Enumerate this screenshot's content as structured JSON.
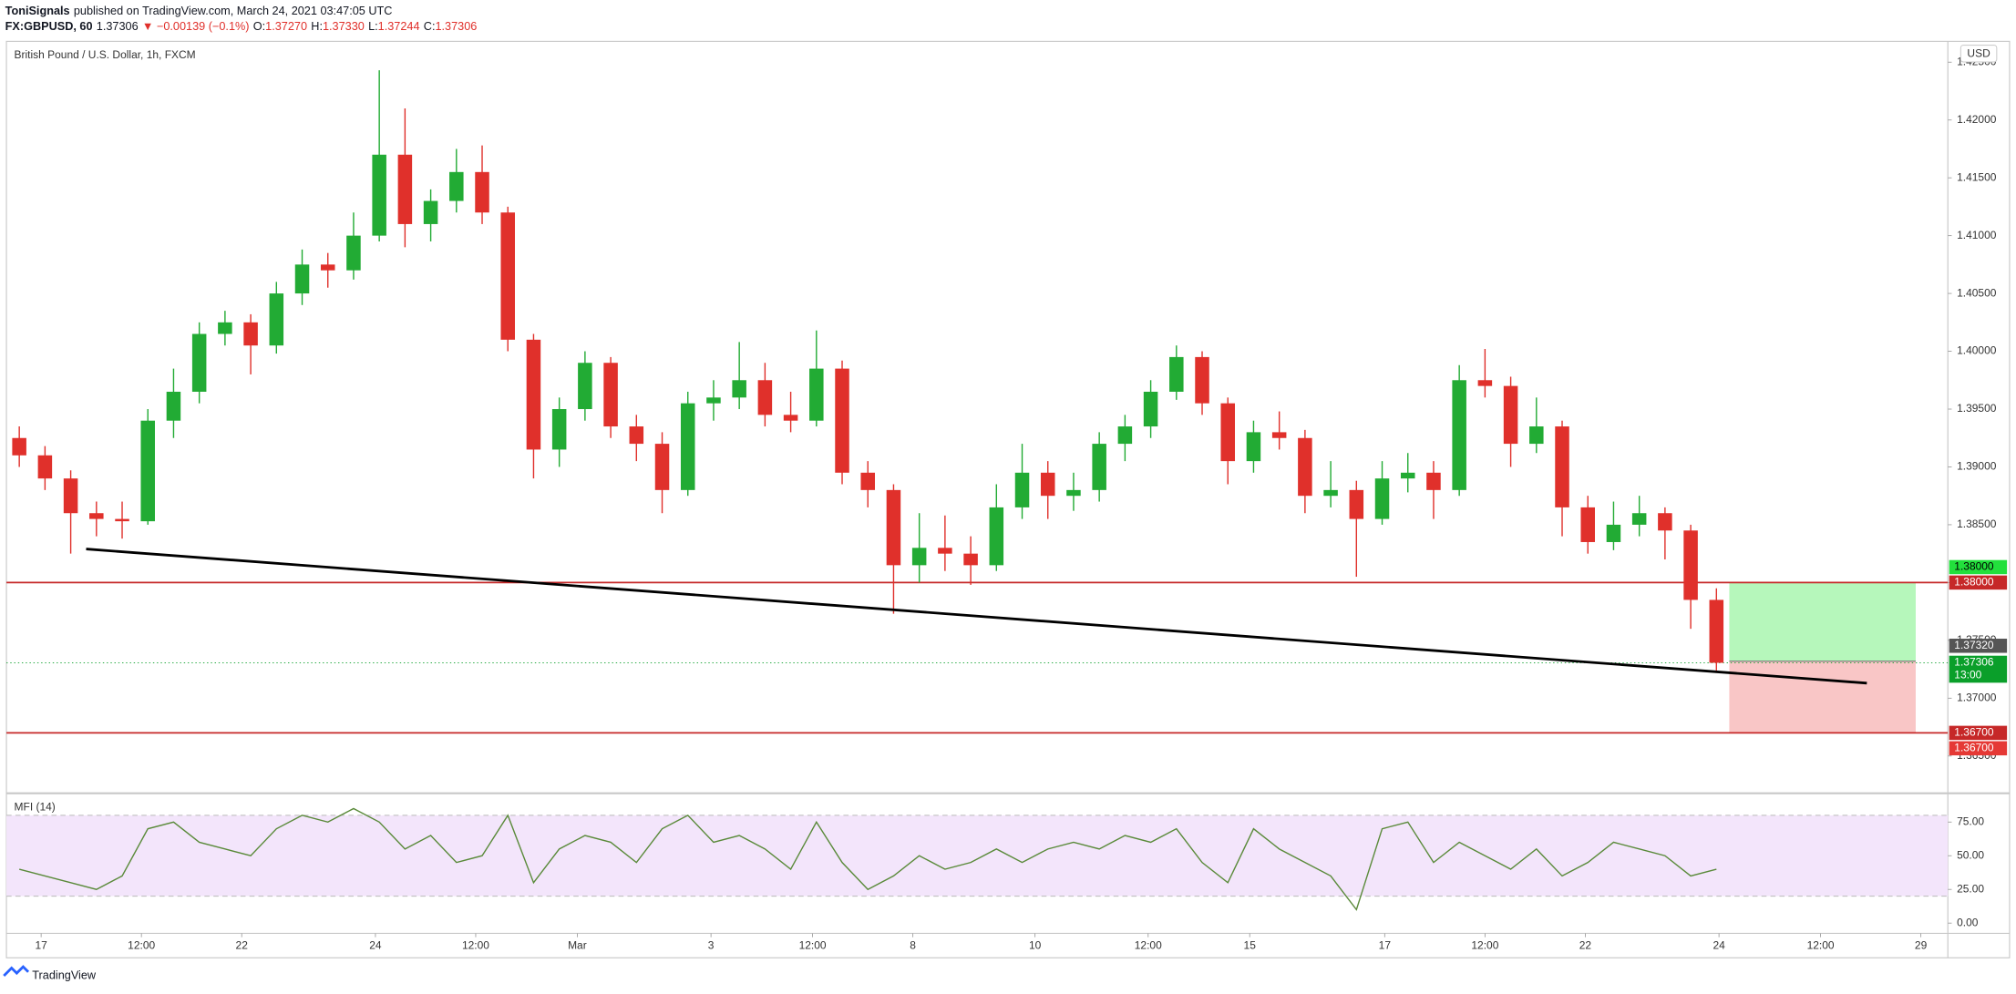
{
  "header": {
    "author": "ToniSignals",
    "published": "published on TradingView.com, March 24, 2021 03:47:05 UTC",
    "symbol": "FX:GBPUSD, 60",
    "last": "1.37306",
    "change": "▼ −0.00139 (−0.1%)",
    "ohlc": [
      {
        "label": "O:",
        "value": "1.37270"
      },
      {
        "label": "H:",
        "value": "1.37330"
      },
      {
        "label": "L:",
        "value": "1.37244"
      },
      {
        "label": "C:",
        "value": "1.37306"
      }
    ]
  },
  "chart_data": [
    {
      "type": "candlestick",
      "title": "British Pound / U.S. Dollar, 1h, FXCM",
      "currency": "USD",
      "up_color": "#22ab34",
      "down_color": "#e0302b",
      "x": [
        0,
        1,
        2,
        3,
        4,
        5,
        6,
        7,
        8,
        9,
        10,
        11,
        12,
        13,
        14,
        15,
        16,
        17,
        18,
        19,
        20,
        21,
        22,
        23,
        24,
        25,
        26,
        27,
        28,
        29,
        30,
        31,
        32,
        33,
        34,
        35,
        36,
        37,
        38,
        39,
        40,
        41,
        42,
        43,
        44,
        45,
        46,
        47,
        48,
        49,
        50,
        51,
        52,
        53,
        54,
        55,
        56,
        57,
        58,
        59,
        60,
        61,
        62,
        63,
        64,
        65,
        66
      ],
      "open": [
        1.3925,
        1.391,
        1.389,
        1.386,
        1.3855,
        1.3853,
        1.394,
        1.3965,
        1.4015,
        1.4025,
        1.4005,
        1.405,
        1.4075,
        1.407,
        1.41,
        1.417,
        1.411,
        1.413,
        1.4155,
        1.412,
        1.401,
        1.3915,
        1.395,
        1.399,
        1.3935,
        1.392,
        1.388,
        1.3955,
        1.396,
        1.3975,
        1.3945,
        1.394,
        1.3985,
        1.3895,
        1.388,
        1.3815,
        1.383,
        1.3825,
        1.3815,
        1.3865,
        1.3895,
        1.3875,
        1.388,
        1.392,
        1.3935,
        1.3965,
        1.3995,
        1.3955,
        1.3905,
        1.393,
        1.3925,
        1.3875,
        1.388,
        1.3855,
        1.389,
        1.3895,
        1.388,
        1.3975,
        1.397,
        1.392,
        1.3935,
        1.3865,
        1.3835,
        1.385,
        1.386,
        1.3845,
        1.3785
      ],
      "high": [
        1.3935,
        1.3918,
        1.3897,
        1.387,
        1.387,
        1.395,
        1.3985,
        1.4025,
        1.4035,
        1.4032,
        1.406,
        1.4088,
        1.4085,
        1.412,
        1.4243,
        1.421,
        1.414,
        1.4175,
        1.4178,
        1.4125,
        1.4015,
        1.396,
        1.4,
        1.3995,
        1.3945,
        1.393,
        1.3965,
        1.3975,
        1.4008,
        1.399,
        1.3965,
        1.4018,
        1.3992,
        1.3905,
        1.3885,
        1.386,
        1.3858,
        1.384,
        1.3885,
        1.392,
        1.3905,
        1.3895,
        1.393,
        1.3945,
        1.3975,
        1.4005,
        1.4,
        1.396,
        1.394,
        1.3948,
        1.3932,
        1.3905,
        1.3888,
        1.3905,
        1.3912,
        1.3905,
        1.3988,
        1.4002,
        1.3978,
        1.396,
        1.394,
        1.3875,
        1.387,
        1.3875,
        1.3865,
        1.385,
        1.3795
      ],
      "low": [
        1.39,
        1.388,
        1.3825,
        1.384,
        1.3838,
        1.385,
        1.3925,
        1.3955,
        1.4005,
        1.398,
        1.3998,
        1.404,
        1.4055,
        1.4062,
        1.4095,
        1.409,
        1.4095,
        1.412,
        1.411,
        1.4,
        1.389,
        1.39,
        1.394,
        1.3925,
        1.3905,
        1.386,
        1.3875,
        1.394,
        1.395,
        1.3935,
        1.393,
        1.3935,
        1.3885,
        1.3865,
        1.3773,
        1.38,
        1.381,
        1.3798,
        1.381,
        1.3855,
        1.3855,
        1.3862,
        1.387,
        1.3905,
        1.3925,
        1.3958,
        1.3945,
        1.3885,
        1.3895,
        1.3915,
        1.386,
        1.3865,
        1.3805,
        1.385,
        1.3878,
        1.3855,
        1.3875,
        1.396,
        1.39,
        1.3912,
        1.384,
        1.3825,
        1.3828,
        1.384,
        1.382,
        1.376,
        1.3724
      ],
      "close": [
        1.391,
        1.389,
        1.386,
        1.3855,
        1.3853,
        1.394,
        1.3965,
        1.4015,
        1.4025,
        1.4005,
        1.405,
        1.4075,
        1.407,
        1.41,
        1.417,
        1.411,
        1.413,
        1.4155,
        1.412,
        1.401,
        1.3915,
        1.395,
        1.399,
        1.3935,
        1.392,
        1.388,
        1.3955,
        1.396,
        1.3975,
        1.3945,
        1.394,
        1.3985,
        1.3895,
        1.388,
        1.3815,
        1.383,
        1.3825,
        1.3815,
        1.3865,
        1.3895,
        1.3875,
        1.388,
        1.392,
        1.3935,
        1.3965,
        1.3995,
        1.3955,
        1.3905,
        1.393,
        1.3925,
        1.3875,
        1.388,
        1.3855,
        1.389,
        1.3895,
        1.388,
        1.3975,
        1.397,
        1.392,
        1.3935,
        1.3865,
        1.3835,
        1.385,
        1.386,
        1.3845,
        1.3785,
        1.37306
      ],
      "xlim": [
        -0.5,
        75
      ],
      "ylim": [
        1.362,
        1.4268
      ],
      "yticks": [
        {
          "value": 1.365,
          "label": "1.36500"
        },
        {
          "value": 1.37,
          "label": "1.37000"
        },
        {
          "value": 1.375,
          "label": "1.37500"
        },
        {
          "value": 1.38,
          "label": "1.38000"
        },
        {
          "value": 1.385,
          "label": "1.38500"
        },
        {
          "value": 1.39,
          "label": "1.39000"
        },
        {
          "value": 1.395,
          "label": "1.39500"
        },
        {
          "value": 1.4,
          "label": "1.40000"
        },
        {
          "value": 1.405,
          "label": "1.40500"
        },
        {
          "value": 1.41,
          "label": "1.41000"
        },
        {
          "value": 1.415,
          "label": "1.41500"
        },
        {
          "value": 1.42,
          "label": "1.42000"
        },
        {
          "value": 1.425,
          "label": "1.42500"
        }
      ],
      "xticks": [
        {
          "value": 0.85,
          "label": "17"
        },
        {
          "value": 4.75,
          "label": "12:00"
        },
        {
          "value": 8.65,
          "label": "22"
        },
        {
          "value": 13.85,
          "label": "24"
        },
        {
          "value": 17.75,
          "label": "12:00"
        },
        {
          "value": 21.7,
          "label": "Mar"
        },
        {
          "value": 26.9,
          "label": "3"
        },
        {
          "value": 30.85,
          "label": "12:00"
        },
        {
          "value": 34.75,
          "label": "8"
        },
        {
          "value": 39.5,
          "label": "10"
        },
        {
          "value": 43.9,
          "label": "12:00"
        },
        {
          "value": 47.85,
          "label": "15"
        },
        {
          "value": 53.1,
          "label": "17"
        },
        {
          "value": 57,
          "label": "12:00"
        },
        {
          "value": 60.9,
          "label": "22"
        },
        {
          "value": 66.1,
          "label": "24"
        },
        {
          "value": 70.05,
          "label": "12:00"
        },
        {
          "value": 73.95,
          "label": "29"
        }
      ],
      "hlines": [
        {
          "value": 1.38,
          "label": "1.38000",
          "color": "#c62828"
        },
        {
          "value": 1.367,
          "label": "1.36700",
          "color": "#c62828"
        }
      ],
      "trendline": {
        "x": [
          2.6,
          71.85
        ],
        "y": [
          1.3829,
          1.3713
        ],
        "color": "#000000"
      },
      "position": {
        "x": [
          66.5,
          73.75
        ],
        "entry": 1.3732,
        "entry_label": "1.37320",
        "target": 1.38,
        "target_label": "1.38000",
        "stop": 1.367,
        "stop_label": "1.36700",
        "profit_color": "#b6f7bb",
        "loss_color": "#f9c6c6"
      },
      "last_price": {
        "value": 1.37306,
        "label": "1.37306",
        "time": "13:00",
        "color": "#0a9f2a"
      }
    },
    {
      "type": "line",
      "title": "MFI (14)",
      "color": "#5a8a3a",
      "band": [
        20,
        80
      ],
      "band_color": "#f3e5fb",
      "values": [
        40,
        35,
        30,
        25,
        35,
        70,
        75,
        60,
        55,
        50,
        70,
        80,
        75,
        85,
        75,
        55,
        65,
        45,
        50,
        80,
        30,
        55,
        65,
        60,
        45,
        70,
        80,
        60,
        65,
        55,
        40,
        75,
        45,
        25,
        35,
        50,
        40,
        45,
        55,
        45,
        55,
        60,
        55,
        65,
        60,
        70,
        45,
        30,
        70,
        55,
        45,
        35,
        10,
        70,
        75,
        45,
        60,
        50,
        40,
        55,
        35,
        45,
        60,
        55,
        50,
        35,
        40
      ],
      "ylim": [
        -7.6,
        93.5
      ],
      "yticks": [
        {
          "value": 0,
          "label": "0.00"
        },
        {
          "value": 25,
          "label": "25.00"
        },
        {
          "value": 50,
          "label": "50.00"
        },
        {
          "value": 75,
          "label": "75.00"
        }
      ]
    }
  ],
  "footer": "TradingView"
}
